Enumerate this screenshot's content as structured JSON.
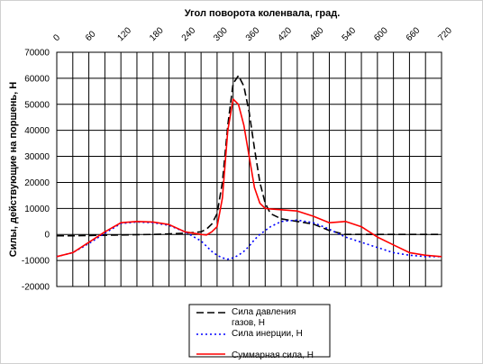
{
  "chart_data": {
    "type": "line",
    "title": "Угол поворота коленвала, град.",
    "xlabel": "Угол поворота коленвала, град.",
    "ylabel": "Силы, действующие на поршень, Н",
    "xlim": [
      0,
      720
    ],
    "ylim": [
      -20000,
      70000
    ],
    "x_ticks": [
      "0",
      "60",
      "120",
      "180",
      "240",
      "300",
      "360",
      "420",
      "480",
      "540",
      "600",
      "660",
      "720"
    ],
    "y_ticks": [
      "70000",
      "60000",
      "50000",
      "40000",
      "30000",
      "20000",
      "10000",
      "0",
      "-10000",
      "-20000"
    ],
    "x_axis_position": "top",
    "grid": true,
    "legend_position": "bottom",
    "x": [
      0,
      30,
      60,
      90,
      120,
      150,
      180,
      210,
      240,
      270,
      280,
      290,
      300,
      310,
      320,
      330,
      340,
      350,
      360,
      370,
      380,
      390,
      400,
      420,
      450,
      480,
      510,
      540,
      570,
      600,
      630,
      660,
      690,
      720
    ],
    "series": [
      {
        "name": "Сила давления газов, Н",
        "color": "#000000",
        "dash": "long-dash",
        "values": [
          -500,
          -500,
          -400,
          -300,
          -200,
          -100,
          0,
          200,
          500,
          1000,
          2000,
          4000,
          8000,
          20000,
          42000,
          58000,
          61000,
          57000,
          47000,
          33000,
          20000,
          12000,
          8000,
          6000,
          5000,
          4000,
          1500,
          0,
          0,
          0,
          0,
          0,
          0,
          0
        ]
      },
      {
        "name": "Сила инерции, Н",
        "color": "#0000ff",
        "dash": "dotted",
        "values": [
          -8500,
          -7000,
          -3500,
          500,
          4200,
          4800,
          4500,
          3500,
          1000,
          -2500,
          -4500,
          -6500,
          -8000,
          -9000,
          -9500,
          -9000,
          -8000,
          -6500,
          -4500,
          -2000,
          0,
          1500,
          3000,
          5000,
          5500,
          4500,
          2000,
          -1000,
          -3000,
          -5000,
          -7000,
          -8000,
          -8500,
          -8500
        ]
      },
      {
        "name": "Суммарная сила, Н",
        "color": "#ff0000",
        "dash": "solid",
        "values": [
          -8500,
          -7000,
          -3000,
          1000,
          4500,
          5000,
          4800,
          3800,
          1000,
          0,
          -200,
          1000,
          3000,
          14000,
          40000,
          52000,
          50000,
          42000,
          30000,
          18000,
          12000,
          10000,
          9800,
          9500,
          9000,
          7000,
          4500,
          5000,
          3000,
          -1000,
          -4000,
          -7000,
          -8000,
          -8500
        ]
      }
    ]
  }
}
